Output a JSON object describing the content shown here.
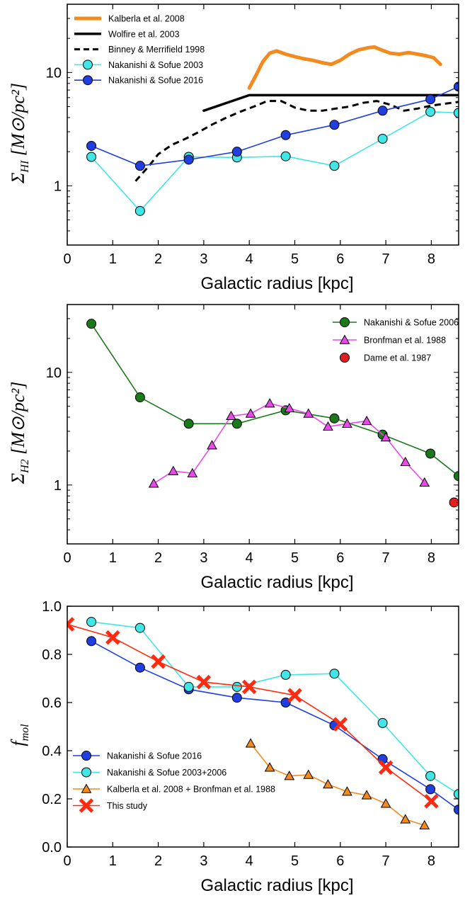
{
  "chart_data": [
    {
      "type": "line",
      "yscale": "log",
      "xlabel": "Galactic radius [kpc]",
      "ylabel": "Σ_HI [M⊙/pc²]",
      "xlim": [
        0,
        8.6
      ],
      "ylim": [
        0.3,
        40
      ],
      "xticks": [
        "0",
        "1",
        "2",
        "3",
        "4",
        "5",
        "6",
        "7",
        "8"
      ],
      "yticks": [
        {
          "value": 1,
          "label": "1"
        },
        {
          "value": 10,
          "label": "10"
        }
      ],
      "legend_position": "top-left",
      "series": [
        {
          "name": "Kalberla et al. 2008",
          "color": "#f28a1e",
          "style": "thick",
          "marker": "none",
          "x": [
            4.0,
            4.15,
            4.3,
            4.45,
            4.6,
            4.8,
            5.0,
            5.2,
            5.4,
            5.6,
            5.8,
            6.0,
            6.2,
            6.4,
            6.6,
            6.75,
            6.9,
            7.1,
            7.3,
            7.5,
            7.7,
            7.9,
            8.05,
            8.2
          ],
          "y": [
            7.3,
            9.5,
            12.5,
            14.8,
            15.5,
            14.5,
            13.8,
            13.2,
            12.8,
            12.2,
            11.8,
            12.8,
            14.5,
            15.8,
            16.5,
            16.8,
            15.8,
            14.8,
            14.5,
            15,
            14.5,
            14,
            13.5,
            11.8
          ]
        },
        {
          "name": "Wolfire et al. 2003",
          "color": "#000000",
          "style": "solid",
          "marker": "none",
          "x": [
            3.0,
            4.0,
            8.6
          ],
          "y": [
            4.6,
            6.3,
            6.3
          ]
        },
        {
          "name": "Binney & Merrifield 1998",
          "color": "#000000",
          "style": "dashed",
          "marker": "none",
          "x": [
            1.5,
            1.8,
            2.0,
            2.3,
            2.6,
            2.9,
            3.2,
            3.5,
            3.8,
            4.1,
            4.4,
            4.7,
            5.0,
            5.3,
            5.6,
            5.9,
            6.2,
            6.5,
            6.8,
            7.1,
            7.4,
            7.7,
            8.0,
            8.3,
            8.6
          ],
          "y": [
            1.1,
            1.5,
            1.9,
            2.3,
            2.6,
            3.0,
            3.5,
            4.0,
            4.5,
            5.0,
            5.6,
            5.6,
            4.9,
            4.6,
            4.6,
            4.8,
            5.0,
            5.4,
            5.6,
            5.2,
            4.6,
            4.8,
            5.1,
            5.3,
            5.5
          ]
        },
        {
          "name": "Nakanishi & Sofue 2003",
          "color": "#40e5e5",
          "style": "solid",
          "marker": "circle",
          "x": [
            0.53,
            1.6,
            2.67,
            3.73,
            4.8,
            5.87,
            6.93,
            7.98,
            8.6
          ],
          "y": [
            1.8,
            0.6,
            1.8,
            1.78,
            1.82,
            1.5,
            2.6,
            4.5,
            4.4
          ]
        },
        {
          "name": "Nakanishi & Sofue 2016",
          "color": "#1f3fe0",
          "style": "solid",
          "marker": "circle",
          "x": [
            0.53,
            1.6,
            2.67,
            3.73,
            4.8,
            5.87,
            6.93,
            7.98,
            8.6
          ],
          "y": [
            2.25,
            1.5,
            1.7,
            2.0,
            2.8,
            3.45,
            4.6,
            5.8,
            7.5
          ]
        }
      ]
    },
    {
      "type": "line",
      "yscale": "log",
      "xlabel": "Galactic radius [kpc]",
      "ylabel": "Σ_H2 [M⊙/pc²]",
      "xlim": [
        0,
        8.6
      ],
      "ylim": [
        0.3,
        40
      ],
      "xticks": [
        "0",
        "1",
        "2",
        "3",
        "4",
        "5",
        "6",
        "7",
        "8"
      ],
      "yticks": [
        {
          "value": 1,
          "label": "1"
        },
        {
          "value": 10,
          "label": "10"
        }
      ],
      "legend_position": "top-right",
      "series": [
        {
          "name": "Nakanishi & Sofue 2006",
          "color": "#1a7a1a",
          "style": "solid",
          "marker": "circle",
          "x": [
            0.53,
            1.6,
            2.67,
            3.73,
            4.8,
            5.87,
            6.93,
            7.98,
            8.6
          ],
          "y": [
            27,
            6.0,
            3.5,
            3.5,
            4.6,
            3.9,
            2.8,
            1.9,
            1.2
          ]
        },
        {
          "name": "Bronfman et al. 1988",
          "color": "#e84ae8",
          "style": "solid",
          "marker": "triangle",
          "x": [
            1.9,
            2.33,
            2.75,
            3.18,
            3.6,
            4.03,
            4.45,
            4.88,
            5.3,
            5.73,
            6.15,
            6.58,
            7.0,
            7.43,
            7.85
          ],
          "y": [
            1.03,
            1.33,
            1.27,
            2.25,
            4.1,
            4.3,
            5.3,
            4.8,
            4.3,
            3.3,
            3.5,
            3.7,
            2.65,
            1.6,
            1.05
          ]
        },
        {
          "name": "Dame et al. 1987",
          "color": "#e02020",
          "style": "none",
          "marker": "circle",
          "x": [
            8.5
          ],
          "y": [
            0.7
          ]
        }
      ]
    },
    {
      "type": "line",
      "yscale": "linear",
      "xlabel": "Galactic radius [kpc]",
      "ylabel": "f_mol",
      "xlim": [
        0,
        8.6
      ],
      "ylim": [
        0.0,
        1.0
      ],
      "xticks": [
        "0",
        "1",
        "2",
        "3",
        "4",
        "5",
        "6",
        "7",
        "8"
      ],
      "yticks": [
        {
          "value": 0.0,
          "label": "0.0"
        },
        {
          "value": 0.2,
          "label": "0.2"
        },
        {
          "value": 0.4,
          "label": "0.4"
        },
        {
          "value": 0.6,
          "label": "0.6"
        },
        {
          "value": 0.8,
          "label": "0.8"
        },
        {
          "value": 1.0,
          "label": "1.0"
        }
      ],
      "legend_position": "bottom-left",
      "series": [
        {
          "name": "Nakanishi & Sofue 2016",
          "color": "#1f3fe0",
          "style": "solid",
          "marker": "circle",
          "x": [
            0.53,
            1.6,
            2.67,
            3.73,
            4.8,
            5.87,
            6.93,
            7.98,
            8.6
          ],
          "y": [
            0.855,
            0.745,
            0.655,
            0.62,
            0.6,
            0.505,
            0.365,
            0.24,
            0.155
          ]
        },
        {
          "name": "Nakanishi & Sofue 2003+2006",
          "color": "#40e5e5",
          "style": "solid",
          "marker": "circle",
          "x": [
            0.53,
            1.6,
            2.67,
            3.73,
            4.8,
            5.87,
            6.93,
            7.98,
            8.6
          ],
          "y": [
            0.935,
            0.91,
            0.665,
            0.665,
            0.715,
            0.72,
            0.515,
            0.295,
            0.22
          ]
        },
        {
          "name": "Kalberla et al. 2008 + Bronfman et al. 1988",
          "color": "#f28a1e",
          "style": "solid",
          "marker": "triangle",
          "x": [
            4.03,
            4.45,
            4.88,
            5.3,
            5.73,
            6.15,
            6.58,
            7.0,
            7.43,
            7.85
          ],
          "y": [
            0.43,
            0.33,
            0.295,
            0.3,
            0.26,
            0.23,
            0.215,
            0.18,
            0.115,
            0.09
          ]
        },
        {
          "name": "This study",
          "color": "#ff2a10",
          "style": "solid",
          "marker": "x",
          "x": [
            0,
            1,
            2,
            3,
            4,
            5,
            6,
            7,
            8
          ],
          "y": [
            0.925,
            0.87,
            0.77,
            0.685,
            0.665,
            0.63,
            0.51,
            0.33,
            0.19
          ]
        }
      ]
    }
  ]
}
